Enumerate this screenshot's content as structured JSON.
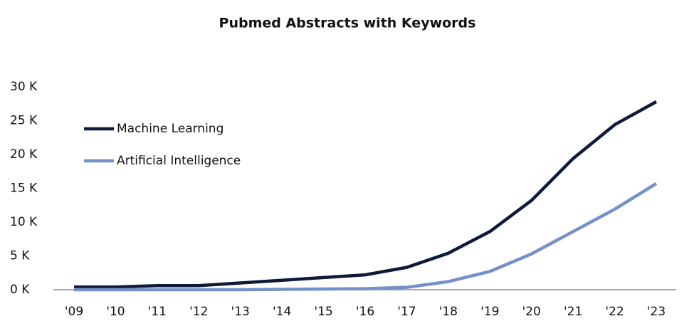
{
  "chart_data": {
    "type": "line",
    "title": "Pubmed Abstracts with Keywords",
    "categories": [
      "'09",
      "'10",
      "'11",
      "'12",
      "'13",
      "'14",
      "'15",
      "'16",
      "'17",
      "'18",
      "'19",
      "'20",
      "'21",
      "'22",
      "'23"
    ],
    "series": [
      {
        "name": "Machine Learning",
        "color": "#0f1a3a",
        "values": [
          400,
          400,
          600,
          600,
          1000,
          1400,
          1800,
          2200,
          3300,
          5400,
          8600,
          13200,
          19400,
          24400,
          27800
        ]
      },
      {
        "name": "Artificial Intelligence",
        "color": "#7391c8",
        "values": [
          0,
          0,
          0,
          0,
          0,
          50,
          100,
          150,
          350,
          1200,
          2700,
          5300,
          8600,
          11900,
          15700
        ]
      }
    ],
    "ylim": [
      0,
      30000
    ],
    "yticks": [
      {
        "value": 0,
        "label": "0 K"
      },
      {
        "value": 5000,
        "label": "5 K"
      },
      {
        "value": 10000,
        "label": "10 K"
      },
      {
        "value": 15000,
        "label": "15 K"
      },
      {
        "value": 20000,
        "label": "20 K"
      },
      {
        "value": 25000,
        "label": "25 K"
      },
      {
        "value": 30000,
        "label": "30 K"
      }
    ],
    "grid": false,
    "legend": "upper-left"
  }
}
